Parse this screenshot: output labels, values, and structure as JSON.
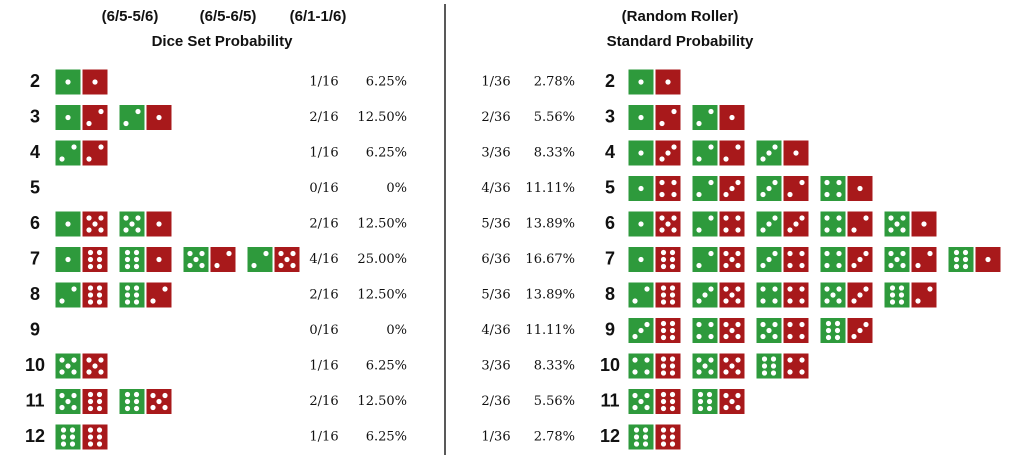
{
  "header": {
    "left_sets": [
      "(6/5-5/6)",
      "(6/5-6/5)",
      "(6/1-1/6)"
    ],
    "left_title": "Dice Set Probability",
    "right_subtitle": "(Random Roller)",
    "right_title": "Standard Probability"
  },
  "left": {
    "rows": [
      {
        "sum": "2",
        "dice": [
          [
            1,
            1
          ]
        ],
        "fraction": "1/16",
        "percent": "6.25%"
      },
      {
        "sum": "3",
        "dice": [
          [
            1,
            2
          ],
          [
            2,
            1
          ]
        ],
        "fraction": "2/16",
        "percent": "12.50%"
      },
      {
        "sum": "4",
        "dice": [
          [
            2,
            2
          ]
        ],
        "fraction": "1/16",
        "percent": "6.25%"
      },
      {
        "sum": "5",
        "dice": [],
        "fraction": "0/16",
        "percent": "0%"
      },
      {
        "sum": "6",
        "dice": [
          [
            1,
            5
          ],
          [
            5,
            1
          ]
        ],
        "fraction": "2/16",
        "percent": "12.50%"
      },
      {
        "sum": "7",
        "dice": [
          [
            1,
            6
          ],
          [
            6,
            1
          ],
          [
            5,
            2
          ],
          [
            2,
            5
          ]
        ],
        "fraction": "4/16",
        "percent": "25.00%"
      },
      {
        "sum": "8",
        "dice": [
          [
            2,
            6
          ],
          [
            6,
            2
          ]
        ],
        "fraction": "2/16",
        "percent": "12.50%"
      },
      {
        "sum": "9",
        "dice": [],
        "fraction": "0/16",
        "percent": "0%"
      },
      {
        "sum": "10",
        "dice": [
          [
            5,
            5
          ]
        ],
        "fraction": "1/16",
        "percent": "6.25%"
      },
      {
        "sum": "11",
        "dice": [
          [
            5,
            6
          ],
          [
            6,
            5
          ]
        ],
        "fraction": "2/16",
        "percent": "12.50%"
      },
      {
        "sum": "12",
        "dice": [
          [
            6,
            6
          ]
        ],
        "fraction": "1/16",
        "percent": "6.25%"
      }
    ]
  },
  "right": {
    "rows": [
      {
        "sum": "2",
        "dice": [
          [
            1,
            1
          ]
        ],
        "fraction": "1/36",
        "percent": "2.78%"
      },
      {
        "sum": "3",
        "dice": [
          [
            1,
            2
          ],
          [
            2,
            1
          ]
        ],
        "fraction": "2/36",
        "percent": "5.56%"
      },
      {
        "sum": "4",
        "dice": [
          [
            1,
            3
          ],
          [
            2,
            2
          ],
          [
            3,
            1
          ]
        ],
        "fraction": "3/36",
        "percent": "8.33%"
      },
      {
        "sum": "5",
        "dice": [
          [
            1,
            4
          ],
          [
            2,
            3
          ],
          [
            3,
            2
          ],
          [
            4,
            1
          ]
        ],
        "fraction": "4/36",
        "percent": "11.11%"
      },
      {
        "sum": "6",
        "dice": [
          [
            1,
            5
          ],
          [
            2,
            4
          ],
          [
            3,
            3
          ],
          [
            4,
            2
          ],
          [
            5,
            1
          ]
        ],
        "fraction": "5/36",
        "percent": "13.89%"
      },
      {
        "sum": "7",
        "dice": [
          [
            1,
            6
          ],
          [
            2,
            5
          ],
          [
            3,
            4
          ],
          [
            4,
            3
          ],
          [
            5,
            2
          ],
          [
            6,
            1
          ]
        ],
        "fraction": "6/36",
        "percent": "16.67%"
      },
      {
        "sum": "8",
        "dice": [
          [
            2,
            6
          ],
          [
            3,
            5
          ],
          [
            4,
            4
          ],
          [
            5,
            3
          ],
          [
            6,
            2
          ]
        ],
        "fraction": "5/36",
        "percent": "13.89%"
      },
      {
        "sum": "9",
        "dice": [
          [
            3,
            6
          ],
          [
            4,
            5
          ],
          [
            5,
            4
          ],
          [
            6,
            3
          ]
        ],
        "fraction": "4/36",
        "percent": "11.11%"
      },
      {
        "sum": "10",
        "dice": [
          [
            4,
            6
          ],
          [
            5,
            5
          ],
          [
            6,
            4
          ]
        ],
        "fraction": "3/36",
        "percent": "8.33%"
      },
      {
        "sum": "11",
        "dice": [
          [
            5,
            6
          ],
          [
            6,
            5
          ]
        ],
        "fraction": "2/36",
        "percent": "5.56%"
      },
      {
        "sum": "12",
        "dice": [
          [
            6,
            6
          ]
        ],
        "fraction": "1/36",
        "percent": "2.78%"
      }
    ]
  }
}
